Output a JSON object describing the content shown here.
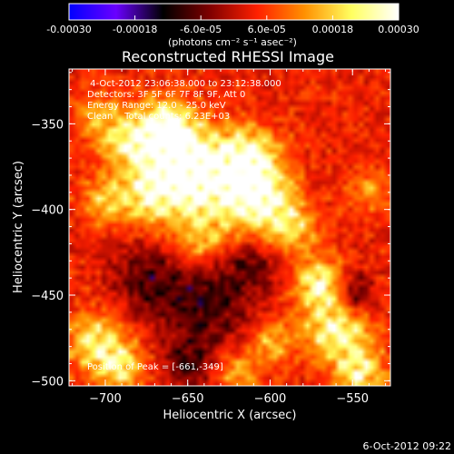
{
  "colorbar": {
    "tick_labels": [
      "-0.00030",
      "-0.00018",
      "-6.0e-05",
      "6.0e-05",
      "0.00018",
      "0.00030"
    ],
    "unit_label": "(photons cm⁻² s⁻¹ asec⁻²)",
    "range": [
      -0.0003,
      0.0003
    ],
    "stops": [
      "#0000ff",
      "#6a00ff",
      "#000000",
      "#800000",
      "#ff2000",
      "#ff9000",
      "#ffff60",
      "#ffffff"
    ]
  },
  "timestamp": "6-Oct-2012 09:22",
  "chart_data": {
    "type": "heatmap",
    "title": "Reconstructed RHESSI Image",
    "xlabel": "Heliocentric X (arcsec)",
    "ylabel": "Heliocentric Y (arcsec)",
    "xlim": [
      -722,
      -527
    ],
    "ylim": [
      -503,
      -318
    ],
    "x_ticks": [
      -700,
      -650,
      -600,
      -550
    ],
    "y_ticks": [
      -500,
      -450,
      -400,
      -350
    ],
    "x_tick_labels": [
      "−700",
      "−650",
      "−600",
      "−550"
    ],
    "y_tick_labels": [
      "−500",
      "−450",
      "−400",
      "−350"
    ],
    "annotations": [
      " 4-Oct-2012 23:06:38.000 to 23:12:38.000",
      "Detectors: 3F 5F 6F 7F 8F 9F, Att 0",
      "Energy Range: 12.0 - 25.0 keV",
      "Clean    Total counts: 6.23E+03"
    ],
    "peak_label": "Position of Peak = [-661,-349]",
    "peak": [
      -661,
      -349
    ],
    "sources": [
      {
        "x": -662,
        "y": -352,
        "amp": 1.0,
        "r": 11
      },
      {
        "x": -685,
        "y": -360,
        "amp": 0.8,
        "r": 12
      },
      {
        "x": -655,
        "y": -373,
        "amp": 0.95,
        "r": 16
      },
      {
        "x": -632,
        "y": -385,
        "amp": 0.85,
        "r": 18
      },
      {
        "x": -612,
        "y": -372,
        "amp": 0.95,
        "r": 12
      },
      {
        "x": -603,
        "y": -397,
        "amp": 0.9,
        "r": 13
      },
      {
        "x": -672,
        "y": -392,
        "amp": 0.75,
        "r": 12
      },
      {
        "x": -585,
        "y": -412,
        "amp": 0.55,
        "r": 10
      },
      {
        "x": -700,
        "y": -395,
        "amp": 0.55,
        "r": 10
      },
      {
        "x": -645,
        "y": -418,
        "amp": 0.45,
        "r": 12
      },
      {
        "x": -705,
        "y": -478,
        "amp": 0.75,
        "r": 12
      },
      {
        "x": -690,
        "y": -492,
        "amp": 0.65,
        "r": 10
      },
      {
        "x": -570,
        "y": -443,
        "amp": 0.85,
        "r": 10
      },
      {
        "x": -560,
        "y": -470,
        "amp": 0.9,
        "r": 14
      },
      {
        "x": -545,
        "y": -495,
        "amp": 0.75,
        "r": 10
      },
      {
        "x": -600,
        "y": -478,
        "amp": 0.45,
        "r": 9
      },
      {
        "x": -620,
        "y": -495,
        "amp": 0.45,
        "r": 9
      },
      {
        "x": -705,
        "y": -345,
        "amp": 0.4,
        "r": 10
      },
      {
        "x": -540,
        "y": -390,
        "amp": 0.35,
        "r": 9
      },
      {
        "x": -640,
        "y": -455,
        "amp": -0.55,
        "r": 18
      },
      {
        "x": -675,
        "y": -440,
        "amp": -0.45,
        "r": 14
      },
      {
        "x": -550,
        "y": -450,
        "amp": -0.6,
        "r": 9
      },
      {
        "x": -650,
        "y": -490,
        "amp": -0.45,
        "r": 10
      },
      {
        "x": -610,
        "y": -432,
        "amp": -0.35,
        "r": 12
      }
    ]
  }
}
